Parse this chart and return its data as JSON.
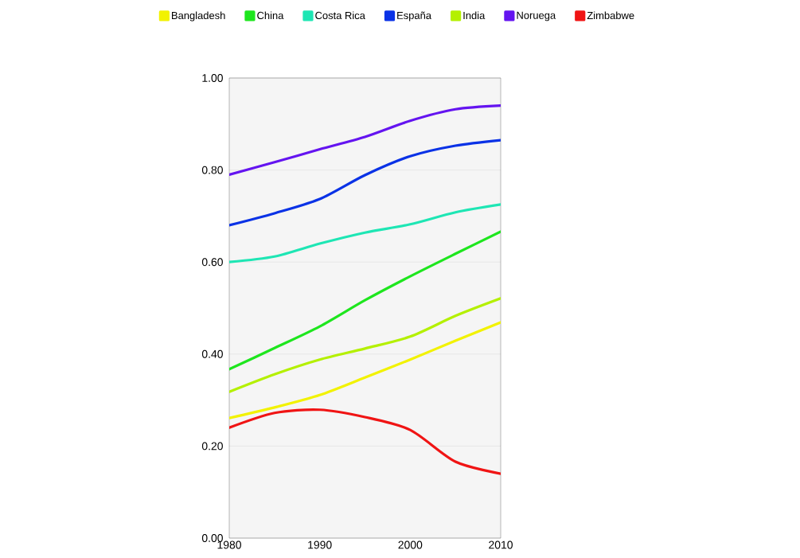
{
  "chart_data": {
    "type": "line",
    "x": [
      1980,
      1985,
      1990,
      1995,
      2000,
      2005,
      2010
    ],
    "series": [
      {
        "name": "Bangladesh",
        "color": "#f2f200",
        "values": [
          0.261,
          0.284,
          0.311,
          0.349,
          0.388,
          0.429,
          0.469
        ]
      },
      {
        "name": "China",
        "color": "#1ee61e",
        "values": [
          0.367,
          0.413,
          0.46,
          0.517,
          0.569,
          0.618,
          0.666
        ]
      },
      {
        "name": "Costa Rica",
        "color": "#1ee6b4",
        "values": [
          0.6,
          0.612,
          0.64,
          0.664,
          0.682,
          0.708,
          0.725
        ]
      },
      {
        "name": "España",
        "color": "#0a32e6",
        "values": [
          0.68,
          0.706,
          0.737,
          0.789,
          0.83,
          0.853,
          0.865
        ]
      },
      {
        "name": "India",
        "color": "#b4f000",
        "values": [
          0.318,
          0.356,
          0.388,
          0.412,
          0.438,
          0.483,
          0.521
        ]
      },
      {
        "name": "Noruega",
        "color": "#6414f0",
        "values": [
          0.79,
          0.817,
          0.845,
          0.872,
          0.907,
          0.932,
          0.94
        ]
      },
      {
        "name": "Zimbabwe",
        "color": "#f01414",
        "values": [
          0.24,
          0.272,
          0.279,
          0.263,
          0.235,
          0.166,
          0.14
        ]
      }
    ],
    "xlim": [
      1980,
      2010
    ],
    "ylim": [
      0,
      1
    ],
    "xticks": [
      1980,
      1990,
      2000,
      2010
    ],
    "yticks": [
      {
        "value": 0,
        "label": "0.00"
      },
      {
        "value": 0.2,
        "label": "0.20"
      },
      {
        "value": 0.4,
        "label": "0.40"
      },
      {
        "value": 0.6,
        "label": "0.60"
      },
      {
        "value": 0.8,
        "label": "0.80"
      },
      {
        "value": 1,
        "label": "1.00"
      }
    ],
    "grid": "y",
    "legend": "top",
    "marker": "none",
    "line_style": "solid"
  }
}
